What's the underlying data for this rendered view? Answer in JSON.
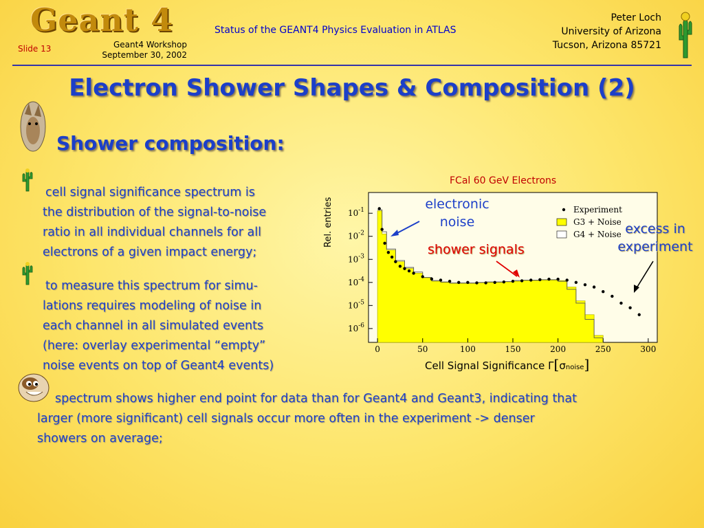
{
  "header": {
    "logo": "Geant 4",
    "slide": "Slide 13",
    "workshop_line1": "Geant4 Workshop",
    "workshop_line2": "September 30, 2002",
    "title": "Status of the GEANT4 Physics Evaluation in ATLAS",
    "author_line1": "Peter Loch",
    "author_line2": "University of Arizona",
    "author_line3": "Tucson, Arizona 85721"
  },
  "title": "Electron Shower Shapes & Composition (2)",
  "subtitle": "Shower composition:",
  "bullets": [
    {
      "lines": [
        "cell signal significance spectrum is",
        "the distribution of the signal-to-noise",
        "ratio in all individual channels for all",
        "electrons of a given impact energy;"
      ]
    },
    {
      "lines": [
        "to measure this spectrum for simu-",
        "lations requires modeling of noise in",
        "each channel in all simulated events",
        "(here: overlay experimental “empty”",
        "noise events on top of Geant4 events)"
      ]
    },
    {
      "lines": [
        "spectrum shows higher end point for data than for Geant4 and Geant3, indicating that",
        "larger (more significant) cell signals occur more often in the experiment -> denser",
        "showers on average;"
      ]
    }
  ],
  "annotations": {
    "electronic_noise_1": "electronic",
    "electronic_noise_2": "noise",
    "shower_signals": "shower signals",
    "excess_1": "excess in",
    "excess_2": "experiment"
  },
  "colors": {
    "title_blue": "#1c3fc8",
    "accent_red": "#e00000",
    "g3_fill": "#ffff00"
  },
  "chart_data": {
    "type": "histogram",
    "title": "FCal 60 GeV Electrons",
    "xlabel": "Cell Signal Significance Γ[σnoise]",
    "xlabel_main": "Cell Signal Significance Γ",
    "xlabel_sigma": "σ",
    "xlabel_sub": "noise",
    "ylabel": "Rel. entries",
    "y_scale": "log",
    "xlim": [
      -10,
      310
    ],
    "ylim_exp": [
      -6.6,
      -0.1
    ],
    "x_ticks": [
      0,
      50,
      100,
      150,
      200,
      250,
      300
    ],
    "y_ticks": [
      {
        "base": "10",
        "exp": "-1"
      },
      {
        "base": "10",
        "exp": "-2"
      },
      {
        "base": "10",
        "exp": "-3"
      },
      {
        "base": "10",
        "exp": "-4"
      },
      {
        "base": "10",
        "exp": "-5"
      },
      {
        "base": "10",
        "exp": "-6"
      }
    ],
    "legend": {
      "position": "top-right",
      "entries": [
        "Experiment",
        "G3 + Noise",
        "G4 + Noise"
      ]
    },
    "series": [
      {
        "name": "Experiment",
        "style": "points",
        "x": [
          2,
          5,
          8,
          12,
          16,
          20,
          25,
          30,
          35,
          40,
          50,
          60,
          70,
          80,
          90,
          100,
          110,
          120,
          130,
          140,
          150,
          160,
          170,
          180,
          190,
          200,
          210,
          220,
          230,
          240,
          250,
          260,
          270,
          280,
          290
        ],
        "y_exp": [
          -0.8,
          -1.7,
          -2.3,
          -2.7,
          -2.9,
          -3.1,
          -3.3,
          -3.4,
          -3.5,
          -3.6,
          -3.75,
          -3.85,
          -3.9,
          -3.95,
          -4.0,
          -4.0,
          -4.02,
          -4.02,
          -4.0,
          -3.98,
          -3.95,
          -3.93,
          -3.9,
          -3.88,
          -3.86,
          -3.86,
          -3.9,
          -4.0,
          -4.1,
          -4.2,
          -4.4,
          -4.6,
          -4.9,
          -5.1,
          -5.4
        ]
      },
      {
        "name": "G3 + Noise",
        "style": "filled-step",
        "x": [
          0,
          5,
          10,
          20,
          30,
          40,
          50,
          60,
          70,
          80,
          90,
          100,
          110,
          120,
          130,
          140,
          150,
          160,
          170,
          180,
          190,
          200,
          210,
          220,
          230,
          240
        ],
        "y_exp": [
          -0.9,
          -1.9,
          -2.6,
          -3.1,
          -3.4,
          -3.6,
          -3.8,
          -3.95,
          -4.0,
          -4.05,
          -4.05,
          -4.05,
          -4.02,
          -4.0,
          -4.0,
          -3.98,
          -3.95,
          -3.92,
          -3.92,
          -3.9,
          -3.9,
          -3.92,
          -4.2,
          -4.8,
          -5.4,
          -6.3
        ]
      },
      {
        "name": "G4 + Noise",
        "style": "open-step",
        "x": [
          0,
          5,
          10,
          20,
          30,
          40,
          50,
          60,
          70,
          80,
          90,
          100,
          110,
          120,
          130,
          140,
          150,
          160,
          170,
          180,
          190,
          200,
          210,
          220,
          230,
          240
        ],
        "y_exp": [
          -0.85,
          -1.8,
          -2.55,
          -3.05,
          -3.35,
          -3.55,
          -3.78,
          -3.92,
          -3.98,
          -4.02,
          -4.02,
          -4.02,
          -4.0,
          -3.98,
          -3.98,
          -3.96,
          -3.92,
          -3.9,
          -3.9,
          -3.88,
          -3.88,
          -3.95,
          -4.3,
          -4.9,
          -5.6,
          -6.4
        ]
      }
    ]
  }
}
